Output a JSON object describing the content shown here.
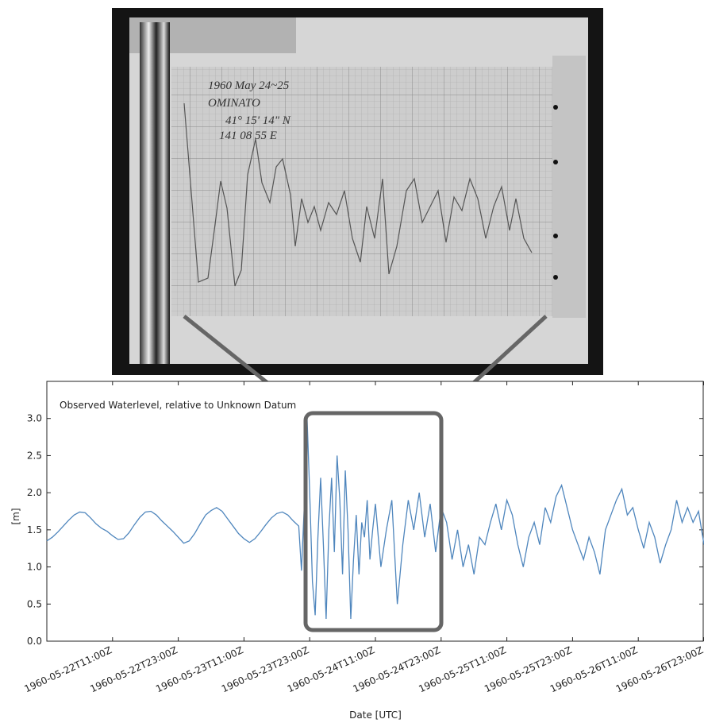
{
  "photo": {
    "annotations": [
      "1960 May 24~25",
      "OMINATO",
      "41° 15' 14\" N",
      "141 08 55 E"
    ]
  },
  "chart_data": {
    "type": "line",
    "ylabel": "[m]",
    "xlabel": "Date [UTC]",
    "xlim": [
      "1960-05-21T23:00Z",
      "1960-05-26T23:00Z"
    ],
    "xticks": [
      "1960-05-22T11:00Z",
      "1960-05-22T23:00Z",
      "1960-05-23T11:00Z",
      "1960-05-23T23:00Z",
      "1960-05-24T11:00Z",
      "1960-05-24T23:00Z",
      "1960-05-25T11:00Z",
      "1960-05-25T23:00Z",
      "1960-05-26T11:00Z",
      "1960-05-26T23:00Z"
    ],
    "ylim": [
      0,
      3.5
    ],
    "yticks": [
      {
        "value": 0,
        "label": "0.0"
      },
      {
        "value": 0.5,
        "label": "0.5"
      },
      {
        "value": 1,
        "label": "1.0"
      },
      {
        "value": 1.5,
        "label": "1.5"
      },
      {
        "value": 2,
        "label": "2.0"
      },
      {
        "value": 2.5,
        "label": "2.5"
      },
      {
        "value": 3,
        "label": "3.0"
      }
    ],
    "x": [
      "1960-05-21T23:00Z",
      "1960-05-22T00:00Z",
      "1960-05-22T01:00Z",
      "1960-05-22T02:00Z",
      "1960-05-22T03:00Z",
      "1960-05-22T04:00Z",
      "1960-05-22T05:00Z",
      "1960-05-22T06:00Z",
      "1960-05-22T07:00Z",
      "1960-05-22T08:00Z",
      "1960-05-22T09:00Z",
      "1960-05-22T10:00Z",
      "1960-05-22T11:00Z",
      "1960-05-22T12:00Z",
      "1960-05-22T13:00Z",
      "1960-05-22T14:00Z",
      "1960-05-22T15:00Z",
      "1960-05-22T16:00Z",
      "1960-05-22T17:00Z",
      "1960-05-22T18:00Z",
      "1960-05-22T19:00Z",
      "1960-05-22T20:00Z",
      "1960-05-22T21:00Z",
      "1960-05-22T22:00Z",
      "1960-05-22T23:00Z",
      "1960-05-23T00:00Z",
      "1960-05-23T01:00Z",
      "1960-05-23T02:00Z",
      "1960-05-23T03:00Z",
      "1960-05-23T04:00Z",
      "1960-05-23T05:00Z",
      "1960-05-23T06:00Z",
      "1960-05-23T07:00Z",
      "1960-05-23T08:00Z",
      "1960-05-23T09:00Z",
      "1960-05-23T10:00Z",
      "1960-05-23T11:00Z",
      "1960-05-23T12:00Z",
      "1960-05-23T13:00Z",
      "1960-05-23T14:00Z",
      "1960-05-23T15:00Z",
      "1960-05-23T16:00Z",
      "1960-05-23T17:00Z",
      "1960-05-23T18:00Z",
      "1960-05-23T19:00Z",
      "1960-05-23T20:00Z",
      "1960-05-23T21:00Z",
      "1960-05-23T21:30Z",
      "1960-05-23T22:00Z",
      "1960-05-23T22:30Z",
      "1960-05-23T23:00Z",
      "1960-05-23T23:30Z",
      "1960-05-24T00:00Z",
      "1960-05-24T00:30Z",
      "1960-05-24T01:00Z",
      "1960-05-24T01:30Z",
      "1960-05-24T02:00Z",
      "1960-05-24T02:30Z",
      "1960-05-24T03:00Z",
      "1960-05-24T03:30Z",
      "1960-05-24T04:00Z",
      "1960-05-24T04:30Z",
      "1960-05-24T05:00Z",
      "1960-05-24T05:30Z",
      "1960-05-24T06:00Z",
      "1960-05-24T06:30Z",
      "1960-05-24T07:00Z",
      "1960-05-24T07:30Z",
      "1960-05-24T08:00Z",
      "1960-05-24T08:30Z",
      "1960-05-24T09:00Z",
      "1960-05-24T09:30Z",
      "1960-05-24T10:00Z",
      "1960-05-24T10:30Z",
      "1960-05-24T11:00Z",
      "1960-05-24T12:00Z",
      "1960-05-24T13:00Z",
      "1960-05-24T14:00Z",
      "1960-05-24T15:00Z",
      "1960-05-24T16:00Z",
      "1960-05-24T17:00Z",
      "1960-05-24T18:00Z",
      "1960-05-24T19:00Z",
      "1960-05-24T20:00Z",
      "1960-05-24T21:00Z",
      "1960-05-24T22:00Z",
      "1960-05-24T23:00Z",
      "1960-05-25T00:00Z",
      "1960-05-25T01:00Z",
      "1960-05-25T02:00Z",
      "1960-05-25T03:00Z",
      "1960-05-25T04:00Z",
      "1960-05-25T05:00Z",
      "1960-05-25T06:00Z",
      "1960-05-25T07:00Z",
      "1960-05-25T08:00Z",
      "1960-05-25T09:00Z",
      "1960-05-25T10:00Z",
      "1960-05-25T11:00Z",
      "1960-05-25T12:00Z",
      "1960-05-25T13:00Z",
      "1960-05-25T14:00Z",
      "1960-05-25T15:00Z",
      "1960-05-25T16:00Z",
      "1960-05-25T17:00Z",
      "1960-05-25T18:00Z",
      "1960-05-25T19:00Z",
      "1960-05-25T20:00Z",
      "1960-05-25T21:00Z",
      "1960-05-25T22:00Z",
      "1960-05-25T23:00Z",
      "1960-05-26T00:00Z",
      "1960-05-26T01:00Z",
      "1960-05-26T02:00Z",
      "1960-05-26T03:00Z",
      "1960-05-26T04:00Z",
      "1960-05-26T05:00Z",
      "1960-05-26T06:00Z",
      "1960-05-26T07:00Z",
      "1960-05-26T08:00Z",
      "1960-05-26T09:00Z",
      "1960-05-26T10:00Z",
      "1960-05-26T11:00Z",
      "1960-05-26T12:00Z",
      "1960-05-26T13:00Z",
      "1960-05-26T14:00Z",
      "1960-05-26T15:00Z",
      "1960-05-26T16:00Z",
      "1960-05-26T17:00Z",
      "1960-05-26T18:00Z",
      "1960-05-26T19:00Z",
      "1960-05-26T20:00Z",
      "1960-05-26T21:00Z",
      "1960-05-26T22:00Z",
      "1960-05-26T23:00Z"
    ],
    "series": [
      {
        "name": "Observed Waterlevel, relative to Unknown Datum",
        "color": "#4f86bd",
        "values": [
          1.35,
          1.4,
          1.47,
          1.55,
          1.63,
          1.7,
          1.74,
          1.73,
          1.66,
          1.58,
          1.52,
          1.48,
          1.42,
          1.37,
          1.38,
          1.46,
          1.57,
          1.67,
          1.74,
          1.75,
          1.7,
          1.62,
          1.55,
          1.48,
          1.4,
          1.32,
          1.35,
          1.45,
          1.58,
          1.7,
          1.76,
          1.8,
          1.75,
          1.65,
          1.55,
          1.45,
          1.38,
          1.33,
          1.38,
          1.47,
          1.57,
          1.66,
          1.72,
          1.74,
          1.7,
          1.62,
          1.55,
          0.95,
          1.8,
          3.05,
          2.0,
          0.8,
          0.35,
          1.4,
          2.2,
          1.3,
          0.3,
          1.5,
          2.2,
          1.2,
          2.5,
          1.9,
          0.9,
          2.3,
          1.5,
          0.3,
          1.1,
          1.7,
          0.9,
          1.6,
          1.4,
          1.9,
          1.1,
          1.5,
          1.85,
          1.0,
          1.5,
          1.9,
          0.5,
          1.3,
          1.9,
          1.5,
          2.0,
          1.4,
          1.85,
          1.2,
          1.8,
          1.6,
          1.1,
          1.5,
          1.0,
          1.3,
          0.9,
          1.4,
          1.3,
          1.6,
          1.85,
          1.5,
          1.9,
          1.7,
          1.3,
          1.0,
          1.4,
          1.6,
          1.3,
          1.8,
          1.6,
          1.95,
          2.1,
          1.8,
          1.5,
          1.3,
          1.1,
          1.4,
          1.2,
          0.9,
          1.5,
          1.7,
          1.9,
          2.05,
          1.7,
          1.8,
          1.5,
          1.25,
          1.6,
          1.4,
          1.05,
          1.3,
          1.5,
          1.9,
          1.6,
          1.8,
          1.6,
          1.75,
          1.3
        ]
      }
    ]
  }
}
